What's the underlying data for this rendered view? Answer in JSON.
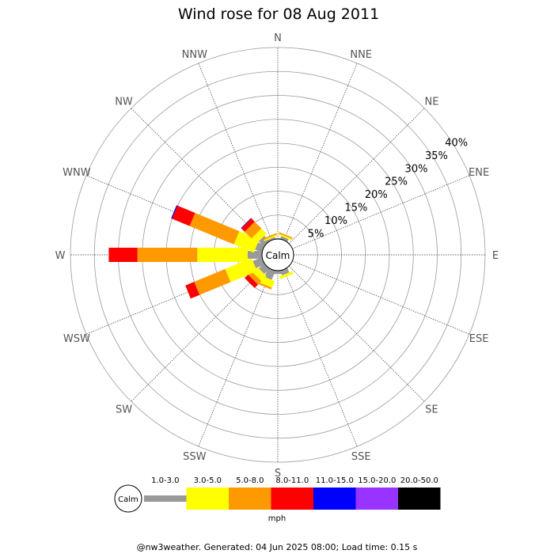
{
  "chart_data": {
    "type": "wind-rose",
    "title": "Wind rose for 08 Aug 2011",
    "directions": [
      "N",
      "NNE",
      "NE",
      "ENE",
      "E",
      "ESE",
      "SE",
      "SSE",
      "S",
      "SSW",
      "SW",
      "WSW",
      "W",
      "WNW",
      "NW",
      "NNW"
    ],
    "radial_ticks": [
      "5%",
      "10%",
      "15%",
      "20%",
      "25%",
      "30%",
      "35%",
      "40%"
    ],
    "radial_range": [
      0,
      40
    ],
    "calm_label": "Calm",
    "speed_unit": "mph",
    "speed_bins": [
      {
        "label": "1.0-3.0",
        "color": "#999999"
      },
      {
        "label": "3.0-5.0",
        "color": "#ffff00"
      },
      {
        "label": "5.0-8.0",
        "color": "#ff9900"
      },
      {
        "label": "8.0-11.0",
        "color": "#ff0000"
      },
      {
        "label": "11.0-15.0",
        "color": "#0000ff"
      },
      {
        "label": "15.0-20.0",
        "color": "#9933ff"
      },
      {
        "label": "20.0-50.0",
        "color": "#000000"
      }
    ],
    "series": [
      {
        "direction": "N",
        "values": [
          0.2,
          0.0,
          0.0,
          0.0,
          0.0,
          0.0,
          0.0
        ]
      },
      {
        "direction": "NNE",
        "values": [
          0.6,
          0.3,
          0.3,
          0.0,
          0.0,
          0.0,
          0.0
        ]
      },
      {
        "direction": "NE",
        "values": [
          0.0,
          0.0,
          0.0,
          0.0,
          0.0,
          0.0,
          0.0
        ]
      },
      {
        "direction": "ENE",
        "values": [
          0.0,
          0.0,
          0.0,
          0.0,
          0.0,
          0.0,
          0.0
        ]
      },
      {
        "direction": "E",
        "values": [
          0.0,
          0.0,
          0.0,
          0.0,
          0.0,
          0.0,
          0.0
        ]
      },
      {
        "direction": "ESE",
        "values": [
          0.0,
          0.0,
          0.0,
          0.0,
          0.0,
          0.0,
          0.0
        ]
      },
      {
        "direction": "SE",
        "values": [
          0.0,
          0.0,
          0.0,
          0.0,
          0.0,
          0.0,
          0.0
        ]
      },
      {
        "direction": "SSE",
        "values": [
          1.0,
          0.6,
          0.0,
          0.0,
          0.0,
          0.0,
          0.0
        ]
      },
      {
        "direction": "S",
        "values": [
          0.7,
          0.0,
          0.0,
          0.0,
          0.0,
          0.0,
          0.0
        ]
      },
      {
        "direction": "SSW",
        "values": [
          2.0,
          1.5,
          0.4,
          0.0,
          0.0,
          0.0,
          0.0
        ]
      },
      {
        "direction": "SW",
        "values": [
          1.5,
          1.5,
          1.0,
          1.0,
          0.0,
          0.0,
          0.0
        ]
      },
      {
        "direction": "WSW",
        "values": [
          2.0,
          6.0,
          7.0,
          2.0,
          0.0,
          0.0,
          0.0
        ]
      },
      {
        "direction": "W",
        "values": [
          3.0,
          10.5,
          12.5,
          6.0,
          0.0,
          0.0,
          0.0
        ]
      },
      {
        "direction": "WNW",
        "values": [
          1.5,
          4.5,
          10.0,
          4.0,
          0.2,
          0.0,
          0.0
        ]
      },
      {
        "direction": "NW",
        "values": [
          1.5,
          1.5,
          2.0,
          1.0,
          0.1,
          0.0,
          0.0
        ]
      },
      {
        "direction": "NNW",
        "values": [
          0.4,
          0.3,
          0.3,
          0.0,
          0.0,
          0.0,
          0.0
        ]
      }
    ]
  },
  "footer": "@nw3weather. Generated: 04 Jun 2025 08:00; Load time: 0.15 s"
}
